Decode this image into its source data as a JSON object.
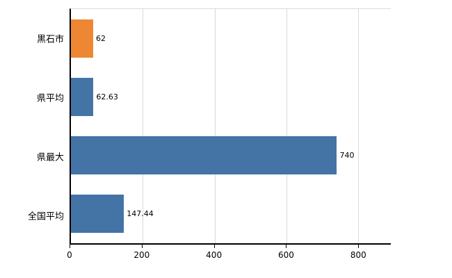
{
  "chart_data": {
    "type": "bar",
    "orientation": "horizontal",
    "title": "",
    "xlabel": "",
    "ylabel": "",
    "categories": [
      "黒石市",
      "県平均",
      "県最大",
      "全国平均"
    ],
    "values": [
      62,
      62.63,
      740,
      147.44
    ],
    "value_labels": [
      "62",
      "62.63",
      "740",
      "147.44"
    ],
    "bar_colors": [
      "#ed8733",
      "#4473a6",
      "#4473a6",
      "#4473a6"
    ],
    "xlim": [
      0,
      890
    ],
    "xticks": [
      0,
      200,
      400,
      600,
      800
    ],
    "xtick_labels": [
      "0",
      "200",
      "400",
      "600",
      "800"
    ],
    "grid": true,
    "legend": "none",
    "colors": {
      "background": "#ffffff",
      "gridline": "#d9d9d9",
      "axis": "#000000",
      "text": "#000000",
      "bar_blue": "#4473a6",
      "bar_orange": "#ed8733"
    }
  }
}
